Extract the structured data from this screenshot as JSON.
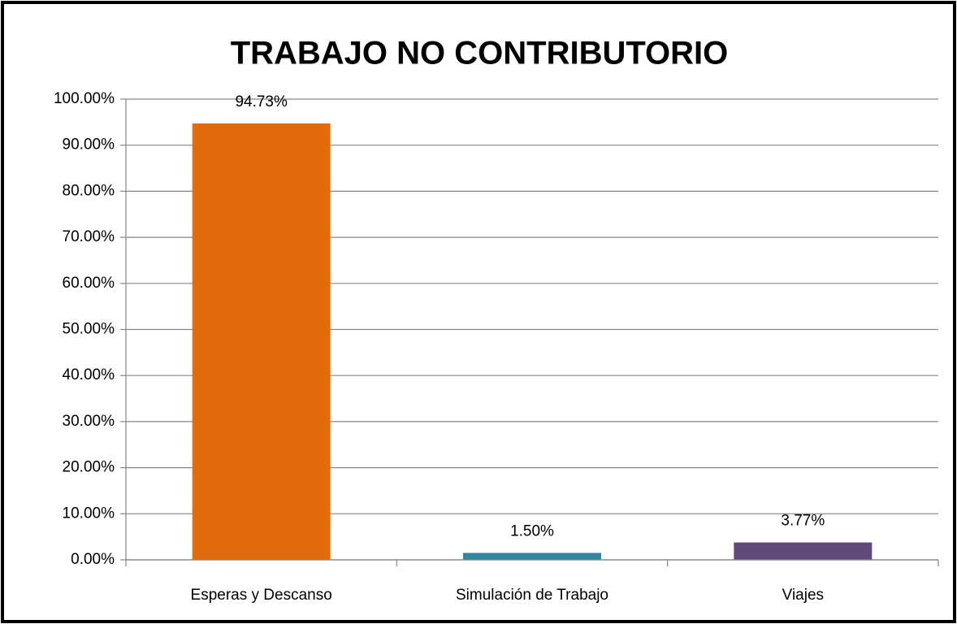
{
  "chart_data": {
    "type": "bar",
    "title": "TRABAJO NO CONTRIBUTORIO",
    "categories": [
      "Esperas y Descanso",
      "Simulación de Trabajo",
      "Viajes"
    ],
    "values": [
      94.73,
      1.5,
      3.77
    ],
    "value_labels": [
      "94.73%",
      "1.50%",
      "3.77%"
    ],
    "colors": [
      "#e36c0a",
      "#31859c",
      "#604a7b"
    ],
    "ylim": [
      0,
      100
    ],
    "yticks": [
      {
        "value": 0,
        "label": "0.00%"
      },
      {
        "value": 10,
        "label": "10.00%"
      },
      {
        "value": 20,
        "label": "20.00%"
      },
      {
        "value": 30,
        "label": "30.00%"
      },
      {
        "value": 40,
        "label": "40.00%"
      },
      {
        "value": 50,
        "label": "50.00%"
      },
      {
        "value": 60,
        "label": "60.00%"
      },
      {
        "value": 70,
        "label": "70.00%"
      },
      {
        "value": 80,
        "label": "80.00%"
      },
      {
        "value": 90,
        "label": "90.00%"
      },
      {
        "value": 100,
        "label": "100.00%"
      }
    ],
    "grid": true
  }
}
